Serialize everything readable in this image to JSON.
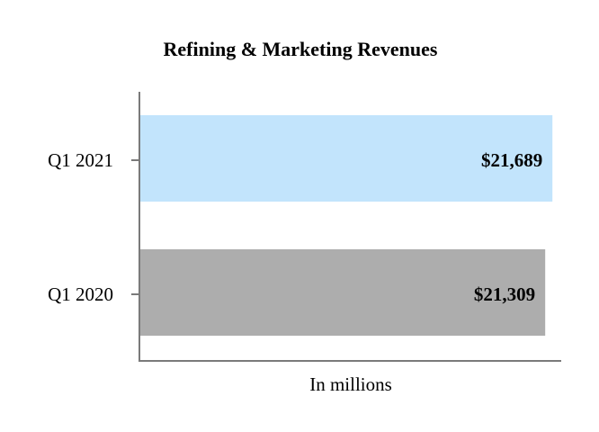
{
  "chart_data": {
    "type": "bar",
    "orientation": "horizontal",
    "title": "Refining & Marketing Revenues",
    "xlabel": "In millions",
    "ylabel": "",
    "categories": [
      "Q1 2021",
      "Q1 2020"
    ],
    "values": [
      21689,
      21309
    ],
    "data_labels": [
      "$21,689",
      "$21,309"
    ],
    "colors": [
      "#c2e4fc",
      "#adadad"
    ],
    "xlim": [
      0,
      22200
    ],
    "grid": false,
    "legend": "none"
  }
}
